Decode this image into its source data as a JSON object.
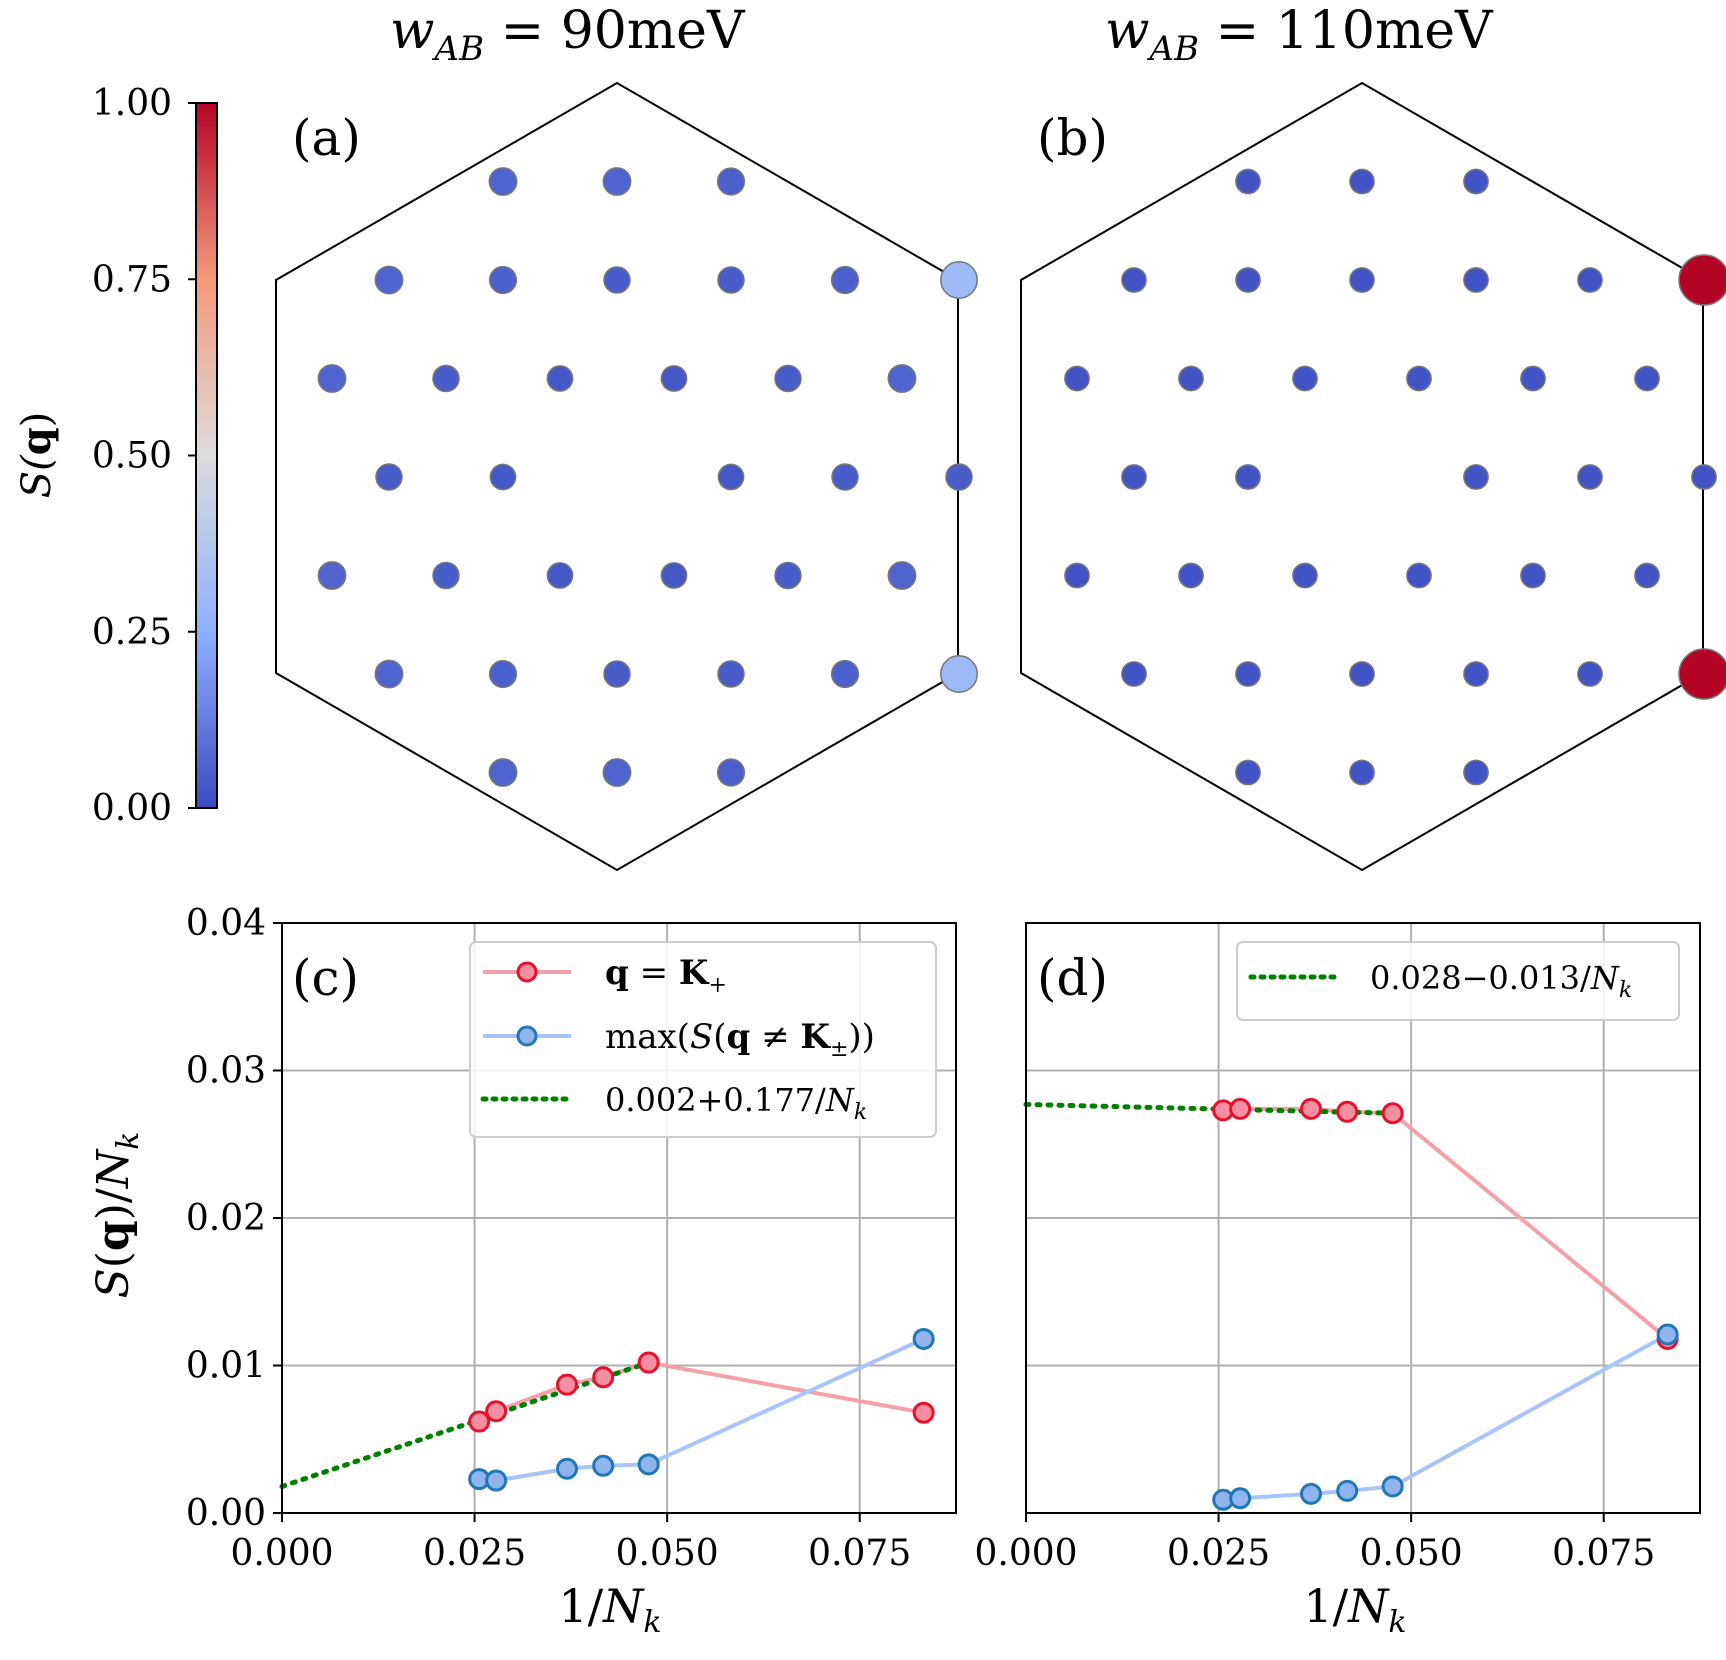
{
  "titles": {
    "col_a": "w_AB = 90meV",
    "col_b": "w_AB = 110meV",
    "col_a_sym": "w",
    "col_a_sub": "AB",
    "col_a_val": " = 90meV",
    "col_b_sym": "w",
    "col_b_sub": "AB",
    "col_b_val": " = 110meV"
  },
  "colorbar": {
    "label": "S(q)",
    "label_S": "S(",
    "label_q": "q",
    "label_close": ")",
    "ticks": [
      "0.00",
      "0.25",
      "0.50",
      "0.75",
      "1.00"
    ],
    "tick_values": [
      0.0,
      0.25,
      0.5,
      0.75,
      1.0
    ],
    "colors": [
      "#3b4cc0",
      "#8db0fe",
      "#dddcdc",
      "#f49a7b",
      "#b40426"
    ]
  },
  "panel_labels": [
    "(a)",
    "(b)",
    "(c)",
    "(d)"
  ],
  "colors": {
    "k_plus_line": "#f4a0a8",
    "k_plus_marker_face": "#f58ea0",
    "k_plus_marker_edge": "#e8112d",
    "max_line": "#a8c4f8",
    "max_marker_face": "#8fb4ee",
    "max_marker_edge": "#1f77b4",
    "fit_line": "#008000",
    "hexagon": "#000000",
    "dot_edge": "#777777"
  },
  "chart_data": [
    {
      "type": "scatter",
      "panel": "(a)",
      "title": "w_AB = 90meV",
      "description_of_encoding": "color and size encode S(q)",
      "points": [
        {
          "i": -2,
          "j": 3,
          "s": 0.06
        },
        {
          "i": 0,
          "j": 3,
          "s": 0.06
        },
        {
          "i": 2,
          "j": 3,
          "s": 0.05
        },
        {
          "i": -4,
          "j": 2,
          "s": 0.06
        },
        {
          "i": -2,
          "j": 2,
          "s": 0.05
        },
        {
          "i": 0,
          "j": 2,
          "s": 0.04
        },
        {
          "i": 2,
          "j": 2,
          "s": 0.04
        },
        {
          "i": 4,
          "j": 2,
          "s": 0.05
        },
        {
          "i": 6,
          "j": 2,
          "s": 0.3
        },
        {
          "i": -5,
          "j": 1,
          "s": 0.06
        },
        {
          "i": -3,
          "j": 1,
          "s": 0.04
        },
        {
          "i": -1,
          "j": 1,
          "s": 0.03
        },
        {
          "i": 1,
          "j": 1,
          "s": 0.03
        },
        {
          "i": 3,
          "j": 1,
          "s": 0.04
        },
        {
          "i": 5,
          "j": 1,
          "s": 0.06
        },
        {
          "i": -4,
          "j": 0,
          "s": 0.04
        },
        {
          "i": -2,
          "j": 0,
          "s": 0.03
        },
        {
          "i": 2,
          "j": 0,
          "s": 0.03
        },
        {
          "i": 4,
          "j": 0,
          "s": 0.04
        },
        {
          "i": 6,
          "j": 0,
          "s": 0.04
        },
        {
          "i": -5,
          "j": -1,
          "s": 0.06
        },
        {
          "i": -3,
          "j": -1,
          "s": 0.04
        },
        {
          "i": -1,
          "j": -1,
          "s": 0.03
        },
        {
          "i": 1,
          "j": -1,
          "s": 0.03
        },
        {
          "i": 3,
          "j": -1,
          "s": 0.04
        },
        {
          "i": 5,
          "j": -1,
          "s": 0.06
        },
        {
          "i": -4,
          "j": -2,
          "s": 0.06
        },
        {
          "i": -2,
          "j": -2,
          "s": 0.05
        },
        {
          "i": 0,
          "j": -2,
          "s": 0.04
        },
        {
          "i": 2,
          "j": -2,
          "s": 0.04
        },
        {
          "i": 4,
          "j": -2,
          "s": 0.05
        },
        {
          "i": 6,
          "j": -2,
          "s": 0.3
        },
        {
          "i": -2,
          "j": -3,
          "s": 0.06
        },
        {
          "i": 0,
          "j": -3,
          "s": 0.06
        },
        {
          "i": 2,
          "j": -3,
          "s": 0.05
        }
      ]
    },
    {
      "type": "scatter",
      "panel": "(b)",
      "title": "w_AB = 110meV",
      "points": [
        {
          "i": -2,
          "j": 3,
          "s": 0.02
        },
        {
          "i": 0,
          "j": 3,
          "s": 0.02
        },
        {
          "i": 2,
          "j": 3,
          "s": 0.02
        },
        {
          "i": -4,
          "j": 2,
          "s": 0.02
        },
        {
          "i": -2,
          "j": 2,
          "s": 0.02
        },
        {
          "i": 0,
          "j": 2,
          "s": 0.02
        },
        {
          "i": 2,
          "j": 2,
          "s": 0.02
        },
        {
          "i": 4,
          "j": 2,
          "s": 0.02
        },
        {
          "i": 6,
          "j": 2,
          "s": 1.0
        },
        {
          "i": -5,
          "j": 1,
          "s": 0.02
        },
        {
          "i": -3,
          "j": 1,
          "s": 0.02
        },
        {
          "i": -1,
          "j": 1,
          "s": 0.02
        },
        {
          "i": 1,
          "j": 1,
          "s": 0.02
        },
        {
          "i": 3,
          "j": 1,
          "s": 0.02
        },
        {
          "i": 5,
          "j": 1,
          "s": 0.02
        },
        {
          "i": -4,
          "j": 0,
          "s": 0.02
        },
        {
          "i": -2,
          "j": 0,
          "s": 0.02
        },
        {
          "i": 2,
          "j": 0,
          "s": 0.02
        },
        {
          "i": 4,
          "j": 0,
          "s": 0.02
        },
        {
          "i": 6,
          "j": 0,
          "s": 0.02
        },
        {
          "i": -5,
          "j": -1,
          "s": 0.02
        },
        {
          "i": -3,
          "j": -1,
          "s": 0.02
        },
        {
          "i": -1,
          "j": -1,
          "s": 0.02
        },
        {
          "i": 1,
          "j": -1,
          "s": 0.02
        },
        {
          "i": 3,
          "j": -1,
          "s": 0.02
        },
        {
          "i": 5,
          "j": -1,
          "s": 0.02
        },
        {
          "i": -4,
          "j": -2,
          "s": 0.02
        },
        {
          "i": -2,
          "j": -2,
          "s": 0.02
        },
        {
          "i": 0,
          "j": -2,
          "s": 0.02
        },
        {
          "i": 2,
          "j": -2,
          "s": 0.02
        },
        {
          "i": 4,
          "j": -2,
          "s": 0.02
        },
        {
          "i": 6,
          "j": -2,
          "s": 1.0
        },
        {
          "i": -2,
          "j": -3,
          "s": 0.02
        },
        {
          "i": 0,
          "j": -3,
          "s": 0.02
        },
        {
          "i": 2,
          "j": -3,
          "s": 0.02
        }
      ]
    },
    {
      "type": "line",
      "panel": "(c)",
      "xlabel": "1/N_k",
      "ylabel": "S(q)/N_k",
      "xlim": [
        0.0,
        0.0875
      ],
      "ylim": [
        0.0,
        0.04
      ],
      "xticks": [
        "0.000",
        "0.025",
        "0.050",
        "0.075"
      ],
      "xtick_values": [
        0.0,
        0.025,
        0.05,
        0.075
      ],
      "yticks": [
        "0.00",
        "0.01",
        "0.02",
        "0.03",
        "0.04"
      ],
      "ytick_values": [
        0.0,
        0.01,
        0.02,
        0.03,
        0.04
      ],
      "grid": true,
      "legend_position": "top-right",
      "series": [
        {
          "name": "q = K+",
          "kind": "k_plus",
          "x": [
            0.0256,
            0.0278,
            0.037,
            0.0417,
            0.0476,
            0.0833
          ],
          "y": [
            0.0062,
            0.0069,
            0.0087,
            0.0092,
            0.0102,
            0.0068
          ]
        },
        {
          "name": "max(S(q ≠ K±))",
          "kind": "max",
          "x": [
            0.0256,
            0.0278,
            0.037,
            0.0417,
            0.0476,
            0.0833
          ],
          "y": [
            0.0023,
            0.0022,
            0.003,
            0.0032,
            0.0033,
            0.0118
          ]
        },
        {
          "name": "0.002+0.177/N_k",
          "kind": "fit",
          "x": [
            0.0,
            0.0476
          ],
          "y": [
            0.0018,
            0.0102
          ]
        }
      ]
    },
    {
      "type": "line",
      "panel": "(d)",
      "xlabel": "1/N_k",
      "xlim": [
        0.0,
        0.0875
      ],
      "ylim": [
        0.0,
        0.04
      ],
      "xticks": [
        "0.000",
        "0.025",
        "0.050",
        "0.075"
      ],
      "xtick_values": [
        0.0,
        0.025,
        0.05,
        0.075
      ],
      "grid": true,
      "legend_position": "top-right",
      "series": [
        {
          "name": "q = K+",
          "kind": "k_plus",
          "in_legend": false,
          "x": [
            0.0256,
            0.0278,
            0.037,
            0.0417,
            0.0476,
            0.0833
          ],
          "y": [
            0.0273,
            0.0274,
            0.0274,
            0.0272,
            0.0271,
            0.0118
          ]
        },
        {
          "name": "max(S(q ≠ K±))",
          "kind": "max",
          "in_legend": false,
          "x": [
            0.0256,
            0.0278,
            0.037,
            0.0417,
            0.0476,
            0.0833
          ],
          "y": [
            0.0009,
            0.001,
            0.0013,
            0.0015,
            0.0018,
            0.0121
          ]
        },
        {
          "name": "0.028−0.013/N_k",
          "kind": "fit",
          "x": [
            0.0,
            0.0476
          ],
          "y": [
            0.0277,
            0.0271
          ]
        }
      ]
    }
  ],
  "legend_c": {
    "k_plus_q": "q",
    "k_plus_eq": " = ",
    "k_plus_K": "K",
    "k_plus_sub": "+",
    "max_pre": "max(",
    "max_S": "S",
    "max_open": "(",
    "max_q": "q",
    "max_ne": " ≠ ",
    "max_K": "K",
    "max_sub": "±",
    "max_close": "))",
    "fit_num": "0.002+0.177/",
    "fit_N": "N",
    "fit_sub": "k"
  },
  "legend_d": {
    "fit_num": "0.028−0.013/",
    "fit_N": "N",
    "fit_sub": "k"
  },
  "axis_labels": {
    "x_one": "1/",
    "x_N": "N",
    "x_sub": "k",
    "y_S": "S",
    "y_open": "(",
    "y_q": "q",
    "y_close": ")/",
    "y_N": "N",
    "y_sub": "k"
  }
}
